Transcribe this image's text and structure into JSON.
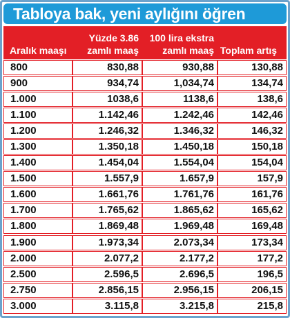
{
  "title": "Tabloya bak, yeni aylığını öğren",
  "headers": {
    "col1": "Aralık maaşı",
    "col2": "Yüzde 3.86 zamlı maaş",
    "col2_line1": "Yüzde 3.86",
    "col2_line2": "zamlı maaş",
    "col3": "100 lira ekstra zamlı maaş",
    "col3_line1": "100 lira ekstra",
    "col3_line2": "zamlı maaş",
    "col4": "Toplam artış"
  },
  "rows": [
    {
      "salary": "800",
      "raised": "830,88",
      "extra": "930,88",
      "total": "130,88"
    },
    {
      "salary": "900",
      "raised": "934,74",
      "extra": "1,034,74",
      "total": "134,74"
    },
    {
      "salary": "1.000",
      "raised": "1038,6",
      "extra": "1138,6",
      "total": "138,6"
    },
    {
      "salary": "1.100",
      "raised": "1.142,46",
      "extra": "1.242,46",
      "total": "142,46"
    },
    {
      "salary": "1.200",
      "raised": "1.246,32",
      "extra": "1.346,32",
      "total": "146,32"
    },
    {
      "salary": "1.300",
      "raised": "1.350,18",
      "extra": "1.450,18",
      "total": "150,18"
    },
    {
      "salary": "1.400",
      "raised": "1.454,04",
      "extra": "1.554,04",
      "total": "154,04"
    },
    {
      "salary": "1.500",
      "raised": "1.557,9",
      "extra": "1.657,9",
      "total": "157,9"
    },
    {
      "salary": "1.600",
      "raised": "1.661,76",
      "extra": "1.761,76",
      "total": "161,76"
    },
    {
      "salary": "1.700",
      "raised": "1.765,62",
      "extra": "1.865,62",
      "total": "165,62"
    },
    {
      "salary": "1.800",
      "raised": "1.869,48",
      "extra": "1.969,48",
      "total": "169,48"
    },
    {
      "salary": "1.900",
      "raised": "1.973,34",
      "extra": "2.073,34",
      "total": "173,34"
    },
    {
      "salary": "2.000",
      "raised": "2.077,2",
      "extra": "2.177,2",
      "total": "177,2"
    },
    {
      "salary": "2.500",
      "raised": "2.596,5",
      "extra": "2.696,5",
      "total": "196,5"
    },
    {
      "salary": "2.750",
      "raised": "2.856,15",
      "extra": "2.956,15",
      "total": "206,15"
    },
    {
      "salary": "3.000",
      "raised": "3.115,8",
      "extra": "3.215,8",
      "total": "215,8"
    }
  ],
  "colors": {
    "title_bg": "#1e9ad8",
    "header_bg": "#e31f26",
    "frame_border": "#6ba2cc"
  }
}
